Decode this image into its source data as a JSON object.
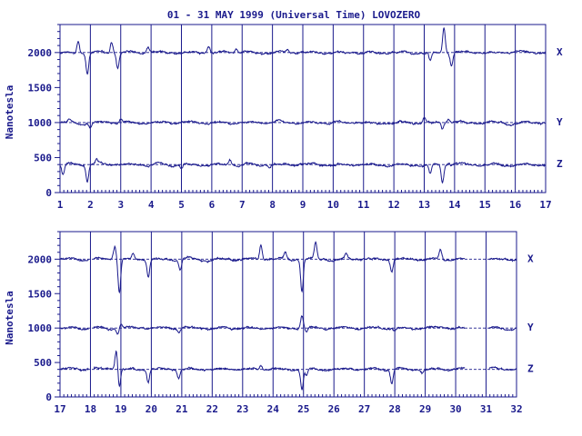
{
  "colors": {
    "ink": "#1a1a8c",
    "background": "#ffffff"
  },
  "chart_data": {
    "type": "line",
    "title": "01 - 31 MAY 1999 (Universal Time) LOVOZERO",
    "ylabel": "Nanotesla",
    "grid": "vertical day lines",
    "panels": [
      {
        "x_ticks": [
          "1",
          "2",
          "3",
          "4",
          "5",
          "6",
          "7",
          "8",
          "9",
          "10",
          "11",
          "12",
          "13",
          "14",
          "15",
          "16",
          "17"
        ],
        "xlim": [
          1,
          17
        ],
        "ylim": [
          0,
          2400
        ],
        "y_ticks": [
          "0",
          "500",
          "1000",
          "1500",
          "2000"
        ],
        "series": [
          {
            "name": "X",
            "baseline": 2000,
            "disturbances": [
              [
                1.6,
                180
              ],
              [
                1.9,
                -280
              ],
              [
                2.7,
                150
              ],
              [
                2.9,
                -220
              ],
              [
                3.9,
                80
              ],
              [
                5.9,
                90
              ],
              [
                6.8,
                60
              ],
              [
                8.5,
                40
              ],
              [
                13.2,
                -120
              ],
              [
                13.65,
                380
              ],
              [
                13.9,
                -180
              ]
            ]
          },
          {
            "name": "Y",
            "baseline": 1000,
            "disturbances": [
              [
                1.3,
                50
              ],
              [
                2.0,
                -60
              ],
              [
                3.0,
                40
              ],
              [
                13.0,
                80
              ],
              [
                13.6,
                -90
              ],
              [
                13.8,
                60
              ]
            ]
          },
          {
            "name": "Z",
            "baseline": 400,
            "disturbances": [
              [
                1.1,
                -150
              ],
              [
                1.9,
                -240
              ],
              [
                2.2,
                60
              ],
              [
                5.0,
                -60
              ],
              [
                6.6,
                80
              ],
              [
                7.9,
                -40
              ],
              [
                13.2,
                -140
              ],
              [
                13.6,
                -250
              ],
              [
                13.8,
                40
              ]
            ]
          }
        ]
      },
      {
        "x_ticks": [
          "17",
          "18",
          "19",
          "20",
          "21",
          "22",
          "23",
          "24",
          "25",
          "26",
          "27",
          "28",
          "29",
          "30",
          "31",
          "32"
        ],
        "xlim": [
          17,
          32
        ],
        "ylim": [
          0,
          2400
        ],
        "y_ticks": [
          "0",
          "500",
          "1000",
          "1500",
          "2000"
        ],
        "gaps": [
          [
            17.95,
            18.1
          ],
          [
            30.3,
            31.1
          ]
        ],
        "series": [
          {
            "name": "X",
            "baseline": 2000,
            "disturbances": [
              [
                18.8,
                180
              ],
              [
                18.95,
                -480
              ],
              [
                19.4,
                80
              ],
              [
                19.9,
                -250
              ],
              [
                20.95,
                -150
              ],
              [
                23.6,
                220
              ],
              [
                24.4,
                80
              ],
              [
                24.95,
                -470
              ],
              [
                25.4,
                230
              ],
              [
                26.4,
                70
              ],
              [
                27.9,
                -180
              ],
              [
                29.5,
                130
              ]
            ]
          },
          {
            "name": "Y",
            "baseline": 1000,
            "disturbances": [
              [
                18.9,
                -80
              ],
              [
                19.0,
                70
              ],
              [
                20.9,
                -50
              ],
              [
                24.95,
                180
              ],
              [
                25.1,
                -80
              ],
              [
                28.0,
                -40
              ]
            ]
          },
          {
            "name": "Z",
            "baseline": 400,
            "disturbances": [
              [
                18.85,
                280
              ],
              [
                18.95,
                -250
              ],
              [
                19.9,
                -190
              ],
              [
                20.9,
                -120
              ],
              [
                23.6,
                60
              ],
              [
                24.95,
                -280
              ],
              [
                25.1,
                -90
              ],
              [
                27.9,
                -200
              ],
              [
                28.9,
                -60
              ]
            ]
          }
        ]
      }
    ]
  }
}
